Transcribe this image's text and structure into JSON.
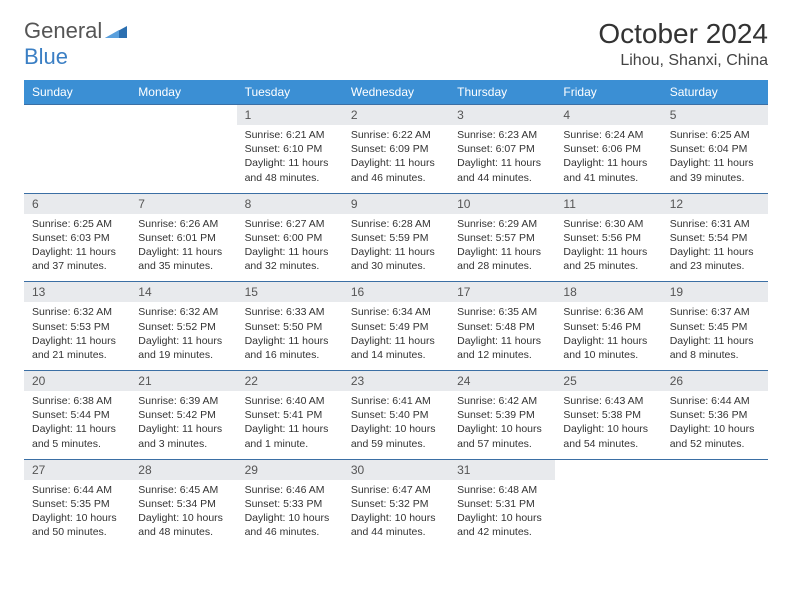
{
  "brand": {
    "part1": "General",
    "part2": "Blue"
  },
  "title": "October 2024",
  "location": "Lihou, Shanxi, China",
  "colors": {
    "header_bg": "#3b8fd4",
    "header_text": "#ffffff",
    "daynum_bg": "#e8eaed",
    "border": "#3b6fa4",
    "brand_blue": "#3b7fc4",
    "brand_gray": "#555555",
    "text": "#333333",
    "page_bg": "#ffffff"
  },
  "day_names": [
    "Sunday",
    "Monday",
    "Tuesday",
    "Wednesday",
    "Thursday",
    "Friday",
    "Saturday"
  ],
  "weeks": [
    [
      null,
      null,
      {
        "n": "1",
        "sr": "6:21 AM",
        "ss": "6:10 PM",
        "dl": "11 hours and 48 minutes."
      },
      {
        "n": "2",
        "sr": "6:22 AM",
        "ss": "6:09 PM",
        "dl": "11 hours and 46 minutes."
      },
      {
        "n": "3",
        "sr": "6:23 AM",
        "ss": "6:07 PM",
        "dl": "11 hours and 44 minutes."
      },
      {
        "n": "4",
        "sr": "6:24 AM",
        "ss": "6:06 PM",
        "dl": "11 hours and 41 minutes."
      },
      {
        "n": "5",
        "sr": "6:25 AM",
        "ss": "6:04 PM",
        "dl": "11 hours and 39 minutes."
      }
    ],
    [
      {
        "n": "6",
        "sr": "6:25 AM",
        "ss": "6:03 PM",
        "dl": "11 hours and 37 minutes."
      },
      {
        "n": "7",
        "sr": "6:26 AM",
        "ss": "6:01 PM",
        "dl": "11 hours and 35 minutes."
      },
      {
        "n": "8",
        "sr": "6:27 AM",
        "ss": "6:00 PM",
        "dl": "11 hours and 32 minutes."
      },
      {
        "n": "9",
        "sr": "6:28 AM",
        "ss": "5:59 PM",
        "dl": "11 hours and 30 minutes."
      },
      {
        "n": "10",
        "sr": "6:29 AM",
        "ss": "5:57 PM",
        "dl": "11 hours and 28 minutes."
      },
      {
        "n": "11",
        "sr": "6:30 AM",
        "ss": "5:56 PM",
        "dl": "11 hours and 25 minutes."
      },
      {
        "n": "12",
        "sr": "6:31 AM",
        "ss": "5:54 PM",
        "dl": "11 hours and 23 minutes."
      }
    ],
    [
      {
        "n": "13",
        "sr": "6:32 AM",
        "ss": "5:53 PM",
        "dl": "11 hours and 21 minutes."
      },
      {
        "n": "14",
        "sr": "6:32 AM",
        "ss": "5:52 PM",
        "dl": "11 hours and 19 minutes."
      },
      {
        "n": "15",
        "sr": "6:33 AM",
        "ss": "5:50 PM",
        "dl": "11 hours and 16 minutes."
      },
      {
        "n": "16",
        "sr": "6:34 AM",
        "ss": "5:49 PM",
        "dl": "11 hours and 14 minutes."
      },
      {
        "n": "17",
        "sr": "6:35 AM",
        "ss": "5:48 PM",
        "dl": "11 hours and 12 minutes."
      },
      {
        "n": "18",
        "sr": "6:36 AM",
        "ss": "5:46 PM",
        "dl": "11 hours and 10 minutes."
      },
      {
        "n": "19",
        "sr": "6:37 AM",
        "ss": "5:45 PM",
        "dl": "11 hours and 8 minutes."
      }
    ],
    [
      {
        "n": "20",
        "sr": "6:38 AM",
        "ss": "5:44 PM",
        "dl": "11 hours and 5 minutes."
      },
      {
        "n": "21",
        "sr": "6:39 AM",
        "ss": "5:42 PM",
        "dl": "11 hours and 3 minutes."
      },
      {
        "n": "22",
        "sr": "6:40 AM",
        "ss": "5:41 PM",
        "dl": "11 hours and 1 minute."
      },
      {
        "n": "23",
        "sr": "6:41 AM",
        "ss": "5:40 PM",
        "dl": "10 hours and 59 minutes."
      },
      {
        "n": "24",
        "sr": "6:42 AM",
        "ss": "5:39 PM",
        "dl": "10 hours and 57 minutes."
      },
      {
        "n": "25",
        "sr": "6:43 AM",
        "ss": "5:38 PM",
        "dl": "10 hours and 54 minutes."
      },
      {
        "n": "26",
        "sr": "6:44 AM",
        "ss": "5:36 PM",
        "dl": "10 hours and 52 minutes."
      }
    ],
    [
      {
        "n": "27",
        "sr": "6:44 AM",
        "ss": "5:35 PM",
        "dl": "10 hours and 50 minutes."
      },
      {
        "n": "28",
        "sr": "6:45 AM",
        "ss": "5:34 PM",
        "dl": "10 hours and 48 minutes."
      },
      {
        "n": "29",
        "sr": "6:46 AM",
        "ss": "5:33 PM",
        "dl": "10 hours and 46 minutes."
      },
      {
        "n": "30",
        "sr": "6:47 AM",
        "ss": "5:32 PM",
        "dl": "10 hours and 44 minutes."
      },
      {
        "n": "31",
        "sr": "6:48 AM",
        "ss": "5:31 PM",
        "dl": "10 hours and 42 minutes."
      },
      null,
      null
    ]
  ],
  "labels": {
    "sunrise": "Sunrise:",
    "sunset": "Sunset:",
    "daylight": "Daylight:"
  }
}
